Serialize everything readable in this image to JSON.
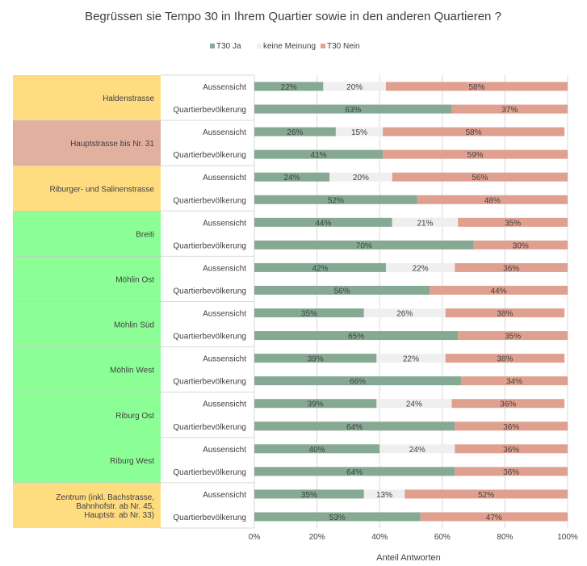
{
  "chart_data": {
    "type": "bar",
    "orientation": "horizontal",
    "stacked": "100%",
    "title": "Begrüssen sie Tempo 30 in Ihrem Quartier sowie in den anderen Quartieren ?",
    "xlabel": "Anteil Antworten",
    "ylabel": "",
    "xlim": [
      0,
      100
    ],
    "x_ticks": [
      "0%",
      "20%",
      "40%",
      "60%",
      "80%",
      "100%"
    ],
    "legend_position": "top-center",
    "series": [
      {
        "name": "T30 Ja",
        "color": "#85a992"
      },
      {
        "name": "keine Meinung",
        "color": "#efefef"
      },
      {
        "name": "T30 Nein",
        "color": "#e0a08f"
      }
    ],
    "groups": [
      {
        "label": "Haldenstrasse",
        "color": "#ffdc80",
        "rows": [
          {
            "label": "Aussensicht",
            "values": [
              22,
              20,
              58
            ]
          },
          {
            "label": "Quartierbevölkerung",
            "values": [
              63,
              0,
              37
            ]
          }
        ]
      },
      {
        "label": "Hauptstrasse bis Nr. 31",
        "color": "#e2b09f",
        "rows": [
          {
            "label": "Aussensicht",
            "values": [
              26,
              15,
              58
            ]
          },
          {
            "label": "Quartierbevölkerung",
            "values": [
              41,
              0,
              59
            ]
          }
        ]
      },
      {
        "label": "Riburger- und Salinenstrasse",
        "color": "#ffdc80",
        "rows": [
          {
            "label": "Aussensicht",
            "values": [
              24,
              20,
              56
            ]
          },
          {
            "label": "Quartierbevölkerung",
            "values": [
              52,
              0,
              48
            ]
          }
        ]
      },
      {
        "label": "Breiti",
        "color": "#8bff96",
        "rows": [
          {
            "label": "Aussensicht",
            "values": [
              44,
              21,
              35
            ]
          },
          {
            "label": "Quartierbevölkerung",
            "values": [
              70,
              0,
              30
            ]
          }
        ]
      },
      {
        "label": "Möhlin Ost",
        "color": "#8bff96",
        "rows": [
          {
            "label": "Aussensicht",
            "values": [
              42,
              22,
              36
            ]
          },
          {
            "label": "Quartierbevölkerung",
            "values": [
              56,
              0,
              44
            ]
          }
        ]
      },
      {
        "label": "Möhlin Süd",
        "color": "#8bff96",
        "rows": [
          {
            "label": "Aussensicht",
            "values": [
              35,
              26,
              38
            ]
          },
          {
            "label": "Quartierbevölkerung",
            "values": [
              65,
              0,
              35
            ]
          }
        ]
      },
      {
        "label": "Möhlin West",
        "color": "#8bff96",
        "rows": [
          {
            "label": "Aussensicht",
            "values": [
              39,
              22,
              38
            ]
          },
          {
            "label": "Quartierbevölkerung",
            "values": [
              66,
              0,
              34
            ]
          }
        ]
      },
      {
        "label": "Riburg Ost",
        "color": "#8bff96",
        "rows": [
          {
            "label": "Aussensicht",
            "values": [
              39,
              24,
              36
            ]
          },
          {
            "label": "Quartierbevölkerung",
            "values": [
              64,
              0,
              36
            ]
          }
        ]
      },
      {
        "label": "Riburg West",
        "color": "#8bff96",
        "rows": [
          {
            "label": "Aussensicht",
            "values": [
              40,
              24,
              36
            ]
          },
          {
            "label": "Quartierbevölkerung",
            "values": [
              64,
              0,
              36
            ]
          }
        ]
      },
      {
        "label": "Zentrum (inkl. Bachstrasse, Bahnhofstr. ab Nr. 45, Hauptstr. ab Nr. 33)",
        "color": "#ffdc80",
        "rows": [
          {
            "label": "Aussensicht",
            "values": [
              35,
              13,
              52
            ]
          },
          {
            "label": "Quartierbevölkerung",
            "values": [
              53,
              0,
              47
            ]
          }
        ]
      }
    ]
  }
}
